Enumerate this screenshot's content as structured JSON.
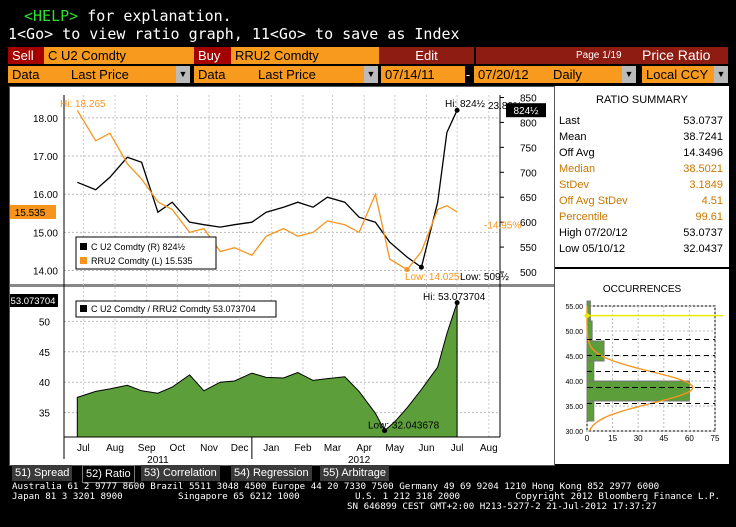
{
  "help": {
    "key": "<HELP>",
    "line1_rest": " for explanation.",
    "line2": "1<Go> to view ratio graph, 11<Go> to save as Index"
  },
  "toolbar": {
    "sell_label": "Sell",
    "sell_ticker": "C U2 Comdty",
    "buy_label": "Buy",
    "buy_ticker": "RRU2 Comdty",
    "edit_label": "Edit",
    "page_label": "Page 1/19",
    "title": "Price Ratio",
    "data_label1": "Data",
    "field1": "Last Price",
    "data_label2": "Data",
    "field2": "Last Price",
    "start_date": "07/14/11",
    "dash": "-",
    "end_date": "07/20/12",
    "period": "Daily",
    "currency": "Local CCY"
  },
  "ratio_summary": {
    "title": "RATIO SUMMARY",
    "rows": [
      {
        "label": "Last",
        "value": "53.0737",
        "color": "#000000"
      },
      {
        "label": "Mean",
        "value": "38.7241",
        "color": "#000000"
      },
      {
        "label": "Off Avg",
        "value": "14.3496",
        "color": "#000000"
      },
      {
        "label": "Median",
        "value": "38.5021",
        "color": "#c87800"
      },
      {
        "label": "StDev",
        "value": "3.1849",
        "color": "#c87800"
      },
      {
        "label": "Off Avg StDev",
        "value": "4.51",
        "color": "#c87800"
      },
      {
        "label": "Percentile",
        "value": "99.61",
        "color": "#c87800"
      },
      {
        "label": "High 07/20/12",
        "value": "53.0737",
        "color": "#000000"
      },
      {
        "label": "Low 05/10/12",
        "value": "32.0437",
        "color": "#000000"
      }
    ]
  },
  "occurrences": {
    "title": "OCCURRENCES",
    "y_ticks": [
      "55.00",
      "50.00",
      "45.00",
      "40.00",
      "35.00",
      "30.00"
    ],
    "x_ticks": [
      "0",
      "15",
      "30",
      "45",
      "60",
      "75"
    ]
  },
  "tabs": [
    {
      "label": "51) Spread",
      "active": false
    },
    {
      "label": "52) Ratio",
      "active": true
    },
    {
      "label": "53) Correlation",
      "active": false
    },
    {
      "label": "54) Regression",
      "active": false
    },
    {
      "label": "55) Arbitrage",
      "active": false
    }
  ],
  "footer": {
    "line1": "Australia 61 2 9777 8600 Brazil 5511 3048 4500 Europe 44 20 7330 7500 Germany 49 69 9204 1210 Hong Kong 852 2977 6000",
    "line2": "Japan 81 3 3201 8900          Singapore 65 6212 1000          U.S. 1 212 318 2000          Copyright 2012 Bloomberg Finance L.P.",
    "line3": "SN 646899 CEST GMT+2:00 H213-5277-2 21-Jul-2012 17:37:27"
  },
  "chart_data": [
    {
      "type": "line",
      "series": [
        {
          "name": "C U2 Comdty (R) 824½",
          "axis": "right",
          "color": "#000000",
          "x": [
            "2011-07-14",
            "2011-08-01",
            "2011-08-15",
            "2011-09-01",
            "2011-09-15",
            "2011-10-01",
            "2011-10-15",
            "2011-11-01",
            "2011-11-15",
            "2011-12-01",
            "2011-12-15",
            "2012-01-01",
            "2012-01-15",
            "2012-02-01",
            "2012-02-15",
            "2012-03-01",
            "2012-03-15",
            "2012-04-01",
            "2012-04-15",
            "2012-05-01",
            "2012-05-15",
            "2012-06-01",
            "2012-06-15",
            "2012-07-01",
            "2012-07-10",
            "2012-07-20"
          ],
          "values": [
            680,
            665,
            690,
            730,
            720,
            620,
            640,
            600,
            595,
            590,
            595,
            600,
            620,
            630,
            640,
            630,
            650,
            640,
            610,
            600,
            560,
            530,
            509.5,
            640,
            780,
            824.5
          ]
        },
        {
          "name": "RRU2 Comdty (L) 15.535",
          "axis": "left",
          "color": "#f7941d",
          "x": [
            "2011-07-14",
            "2011-08-01",
            "2011-08-15",
            "2011-09-01",
            "2011-09-15",
            "2011-10-01",
            "2011-10-15",
            "2011-11-01",
            "2011-11-15",
            "2011-12-01",
            "2011-12-15",
            "2012-01-01",
            "2012-01-15",
            "2012-02-01",
            "2012-02-15",
            "2012-03-01",
            "2012-03-15",
            "2012-04-01",
            "2012-04-15",
            "2012-05-01",
            "2012-05-15",
            "2012-06-01",
            "2012-06-15",
            "2012-07-01",
            "2012-07-10",
            "2012-07-20"
          ],
          "values": [
            18.2,
            17.4,
            17.6,
            16.8,
            16.4,
            15.8,
            15.6,
            15.0,
            15.1,
            14.5,
            14.6,
            14.4,
            14.9,
            15.1,
            14.9,
            15.0,
            15.3,
            15.2,
            15.0,
            16.0,
            14.3,
            14.025,
            14.5,
            15.6,
            15.7,
            15.535
          ]
        }
      ],
      "yleft_lim": [
        13.7,
        18.6
      ],
      "yright_lim": [
        480,
        855
      ],
      "yleft_ticks": [
        "18.00",
        "17.00",
        "16.00",
        "15.00",
        "14.00"
      ],
      "yright_ticks": [
        "850",
        "800",
        "750",
        "700",
        "650",
        "600",
        "550",
        "500"
      ],
      "hi_left_label": "Hi: 18.265",
      "hi_right_label": "Hi: 824½",
      "low_left_label": "Low: 14.025",
      "low_right_label": "Low: 509½",
      "pct_up_label": "23.89%",
      "pct_down_label": "-14.95%",
      "last_left_label": "15.535",
      "last_right_label": "824½",
      "legend": [
        "C U2 Comdty (R)  824½",
        "RRU2 Comdty (L) 15.535"
      ]
    },
    {
      "type": "area",
      "series": [
        {
          "name": "C U2 Comdty / RRU2 Comdty 53.073704",
          "color": "#5b9e3a",
          "x": [
            "2011-07-14",
            "2011-08-01",
            "2011-08-15",
            "2011-09-01",
            "2011-09-15",
            "2011-10-01",
            "2011-10-15",
            "2011-11-01",
            "2011-11-15",
            "2011-12-01",
            "2011-12-15",
            "2012-01-01",
            "2012-01-15",
            "2012-02-01",
            "2012-02-15",
            "2012-03-01",
            "2012-03-15",
            "2012-04-01",
            "2012-04-15",
            "2012-05-01",
            "2012-05-10",
            "2012-05-20",
            "2012-06-01",
            "2012-06-15",
            "2012-07-01",
            "2012-07-10",
            "2012-07-20"
          ],
          "values": [
            37.5,
            38.5,
            38.9,
            39.5,
            38.6,
            38.2,
            39.2,
            41.2,
            38.6,
            40.0,
            40.2,
            41.5,
            40.8,
            40.7,
            41.6,
            40.3,
            40.6,
            40.9,
            38.5,
            34.9,
            32.0437,
            33.5,
            35.8,
            38.8,
            42.5,
            48.0,
            53.073704
          ]
        }
      ],
      "ylim": [
        31,
        54.5
      ],
      "y_ticks": [
        "50",
        "45",
        "40",
        "35"
      ],
      "hi_label": "Hi: 53.073704",
      "low_label": "Low: 32.043678",
      "last_label": "53.073704",
      "legend": [
        "C U2 Comdty / RRU2 Comdty 53.073704"
      ],
      "x_ticks": [
        "Jul",
        "Aug",
        "Sep",
        "Oct",
        "Nov",
        "Dec",
        "Jan",
        "Feb",
        "Mar",
        "Apr",
        "May",
        "Jun",
        "Jul",
        "Aug"
      ],
      "year_labels": [
        "2011",
        "2012"
      ]
    }
  ]
}
